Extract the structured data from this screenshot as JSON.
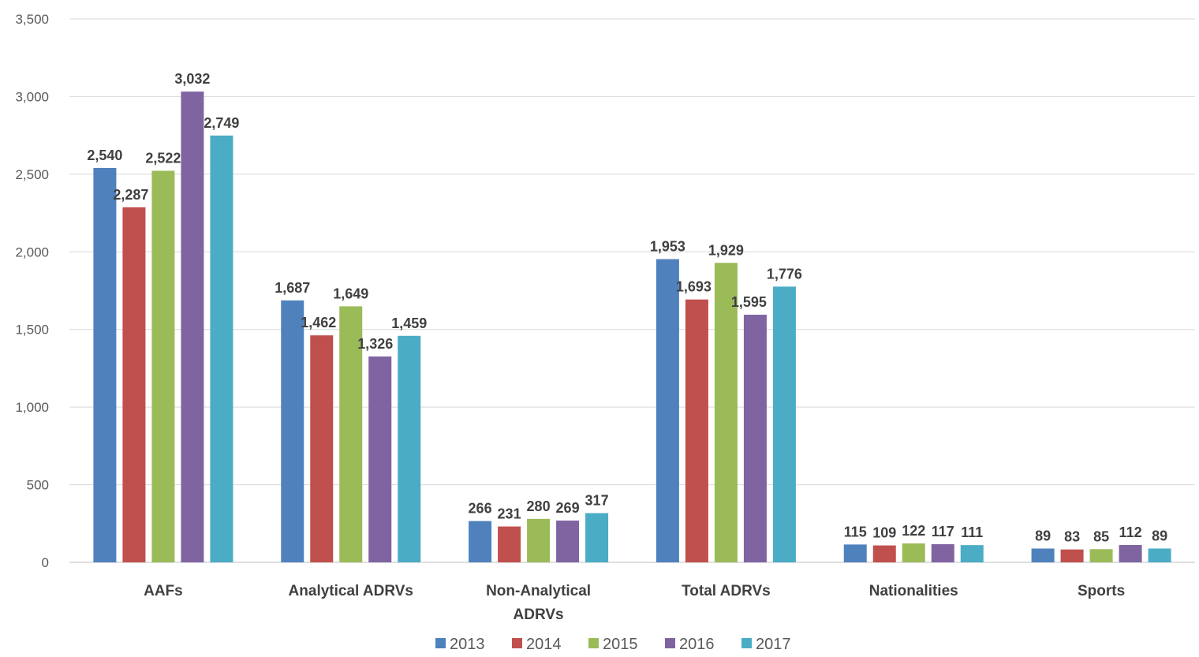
{
  "chart_data": {
    "type": "bar",
    "categories": [
      "AAFs",
      "Analytical ADRVs",
      "Non-Analytical ADRVs",
      "Total ADRVs",
      "Nationalities",
      "Sports"
    ],
    "series": [
      {
        "name": "2013",
        "color": "#4F81BD",
        "values": [
          2540,
          1687,
          266,
          1953,
          115,
          89
        ],
        "labels": [
          "2,540",
          "1,687",
          "266",
          "1,953",
          "115",
          "89"
        ]
      },
      {
        "name": "2014",
        "color": "#C0504D",
        "values": [
          2287,
          1462,
          231,
          1693,
          109,
          83
        ],
        "labels": [
          "2,287",
          "1,462",
          "231",
          "1,693",
          "109",
          "83"
        ]
      },
      {
        "name": "2015",
        "color": "#9BBB59",
        "values": [
          2522,
          1649,
          280,
          1929,
          122,
          85
        ],
        "labels": [
          "2,522",
          "1,649",
          "280",
          "1,929",
          "122",
          "85"
        ]
      },
      {
        "name": "2016",
        "color": "#8064A2",
        "values": [
          3032,
          1326,
          269,
          1595,
          117,
          112
        ],
        "labels": [
          "3,032",
          "1,326",
          "269",
          "1,595",
          "117",
          "112"
        ]
      },
      {
        "name": "2017",
        "color": "#4BACC6",
        "values": [
          2749,
          1459,
          317,
          1776,
          111,
          89
        ],
        "labels": [
          "2,749",
          "1,459",
          "317",
          "1,776",
          "111",
          "89"
        ]
      }
    ],
    "ylim": [
      0,
      3500
    ],
    "yticks": [
      "0",
      "500",
      "1,000",
      "1,500",
      "2,000",
      "2,500",
      "3,000",
      "3,500"
    ],
    "grid": true,
    "legend_position": "bottom-center",
    "title": "",
    "xlabel": "",
    "ylabel": ""
  }
}
